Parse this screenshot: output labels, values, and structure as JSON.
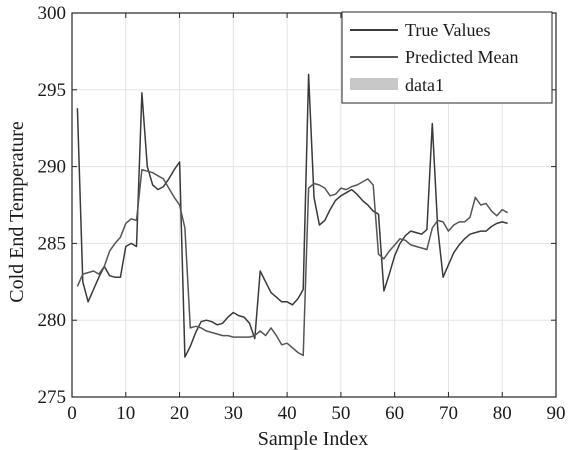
{
  "chart_data": {
    "type": "line",
    "xlabel": "Sample Index",
    "ylabel": "Cold End Temperature",
    "xlim": [
      0,
      90
    ],
    "ylim": [
      275,
      300
    ],
    "xticks": [
      0,
      10,
      20,
      30,
      40,
      50,
      60,
      70,
      80,
      90
    ],
    "yticks": [
      275,
      280,
      285,
      290,
      295,
      300
    ],
    "grid": true,
    "legend": {
      "position": "top-right",
      "entries": [
        {
          "label": "True Values",
          "style": "line",
          "color": "#3a3a3a"
        },
        {
          "label": "Predicted Mean",
          "style": "line",
          "color": "#555555"
        },
        {
          "label": "data1",
          "style": "band",
          "color": "#c8c8c8"
        }
      ]
    },
    "series": [
      {
        "name": "True Values",
        "color": "#3a3a3a",
        "x": [
          1,
          2,
          3,
          4,
          5,
          6,
          7,
          8,
          9,
          10,
          11,
          12,
          13,
          14,
          15,
          16,
          17,
          18,
          19,
          20,
          21,
          22,
          23,
          24,
          25,
          26,
          27,
          28,
          29,
          30,
          31,
          32,
          33,
          34,
          35,
          36,
          37,
          38,
          39,
          40,
          41,
          42,
          43,
          44,
          45,
          46,
          47,
          48,
          49,
          50,
          51,
          52,
          53,
          54,
          55,
          56,
          57,
          58,
          59,
          60,
          61,
          62,
          63,
          64,
          65,
          66,
          67,
          68,
          69,
          70,
          71,
          72,
          73,
          74,
          75,
          76,
          77,
          78,
          79,
          80,
          81
        ],
        "y": [
          293.8,
          282.5,
          281.2,
          282.0,
          282.8,
          283.5,
          282.9,
          282.8,
          282.8,
          284.8,
          285.0,
          284.8,
          294.8,
          290.0,
          288.8,
          288.5,
          288.7,
          289.2,
          289.8,
          290.3,
          277.6,
          278.3,
          279.2,
          279.9,
          280.0,
          279.9,
          279.7,
          279.8,
          280.2,
          280.5,
          280.3,
          280.2,
          279.8,
          278.8,
          283.2,
          282.5,
          281.8,
          281.5,
          281.2,
          281.2,
          281.0,
          281.4,
          282.0,
          296.0,
          288.0,
          286.2,
          286.5,
          287.2,
          287.8,
          288.1,
          288.3,
          288.5,
          288.2,
          287.8,
          287.5,
          287.1,
          286.9,
          281.9,
          283.0,
          284.2,
          285.0,
          285.5,
          285.8,
          285.7,
          285.6,
          285.9,
          292.8,
          286.0,
          282.8,
          283.6,
          284.4,
          284.9,
          285.3,
          285.6,
          285.7,
          285.8,
          285.8,
          286.1,
          286.3,
          286.4,
          286.3
        ]
      },
      {
        "name": "Predicted Mean",
        "color": "#555555",
        "x": [
          1,
          2,
          3,
          4,
          5,
          6,
          7,
          8,
          9,
          10,
          11,
          12,
          13,
          14,
          15,
          16,
          17,
          18,
          19,
          20,
          21,
          22,
          23,
          24,
          25,
          26,
          27,
          28,
          29,
          30,
          31,
          32,
          33,
          34,
          35,
          36,
          37,
          38,
          39,
          40,
          41,
          42,
          43,
          44,
          45,
          46,
          47,
          48,
          49,
          50,
          51,
          52,
          53,
          54,
          55,
          56,
          57,
          58,
          59,
          60,
          61,
          62,
          63,
          64,
          65,
          66,
          67,
          68,
          69,
          70,
          71,
          72,
          73,
          74,
          75,
          76,
          77,
          78,
          79,
          80,
          81
        ],
        "y": [
          282.2,
          283.0,
          283.1,
          283.2,
          283.0,
          283.5,
          284.5,
          285.0,
          285.4,
          286.3,
          286.6,
          286.5,
          289.8,
          289.7,
          289.6,
          289.4,
          289.2,
          288.6,
          288.0,
          287.5,
          286.0,
          279.5,
          279.6,
          279.5,
          279.3,
          279.2,
          279.1,
          279.0,
          279.0,
          278.9,
          278.9,
          278.9,
          278.9,
          279.0,
          279.3,
          279.0,
          279.5,
          279.0,
          278.4,
          278.5,
          278.2,
          277.9,
          277.7,
          288.6,
          288.9,
          288.8,
          288.6,
          288.1,
          288.2,
          288.6,
          288.5,
          288.7,
          288.8,
          289.0,
          289.2,
          288.8,
          284.3,
          284.0,
          284.5,
          284.9,
          285.3,
          285.2,
          284.9,
          284.8,
          284.7,
          284.6,
          286.0,
          286.5,
          286.4,
          285.8,
          286.2,
          286.4,
          286.4,
          286.7,
          288.0,
          287.5,
          287.6,
          287.1,
          286.8,
          287.2,
          287.0
        ]
      }
    ]
  }
}
